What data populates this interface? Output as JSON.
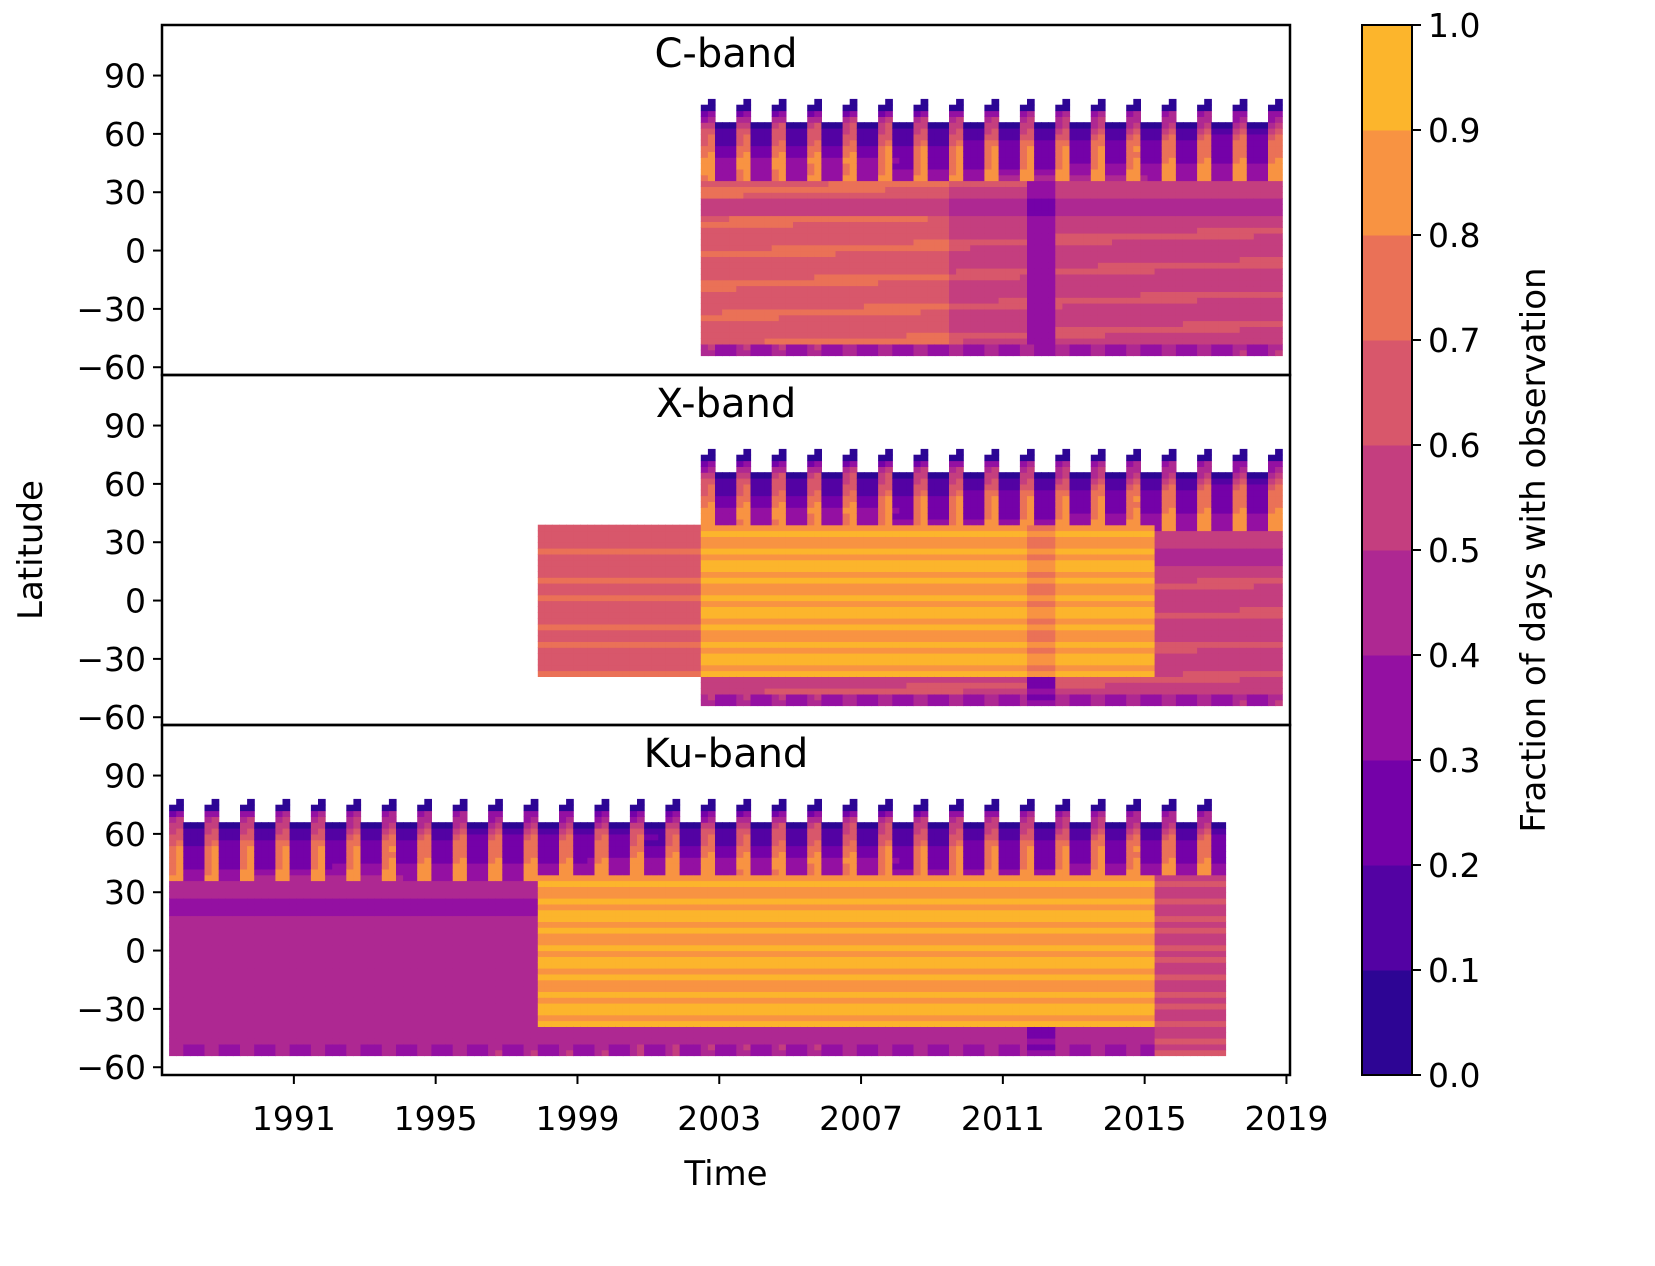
{
  "chart_data": {
    "type": "heatmap",
    "xlabel": "Time",
    "ylabel": "Latitude",
    "xlim": [
      1987.28,
      2019.1
    ],
    "ylim": [
      -64,
      116
    ],
    "xticks": [
      1991,
      1995,
      1999,
      2003,
      2007,
      2011,
      2015,
      2019
    ],
    "yticks": [
      90,
      60,
      30,
      0,
      -30,
      -60
    ],
    "ytick_labels": [
      "90",
      "60",
      "30",
      "0",
      "−30",
      "−60"
    ],
    "colorbar": {
      "label": "Fraction of days with observation",
      "ticks": [
        "0.0",
        "0.1",
        "0.2",
        "0.3",
        "0.4",
        "0.5",
        "0.6",
        "0.7",
        "0.8",
        "0.9",
        "1.0"
      ],
      "levels": [
        0,
        0.1,
        0.2,
        0.3,
        0.4,
        0.5,
        0.6,
        0.7,
        0.8,
        0.9,
        1.0
      ],
      "colors": [
        "#2d0594",
        "#5302a3",
        "#7401a8",
        "#9410a2",
        "#ae2892",
        "#c43e7f",
        "#d8576b",
        "#ea7157",
        "#f89342",
        "#fcb52c",
        "#f2e12a"
      ],
      "colormap": "plasma"
    },
    "panels": [
      {
        "title": "C-band",
        "segments": [
          {
            "start": 2002.5,
            "end": 2009.4,
            "lat_min": -55,
            "lat_max": 80,
            "value": 0.68,
            "seasonal": true
          },
          {
            "start": 2009.4,
            "end": 2011.7,
            "lat_min": -55,
            "lat_max": 80,
            "value": 0.58,
            "seasonal": true
          },
          {
            "start": 2011.7,
            "end": 2012.4,
            "lat_min": -55,
            "lat_max": 80,
            "value": 0.33,
            "seasonal": true
          },
          {
            "start": 2012.4,
            "end": 2018.9,
            "lat_min": -55,
            "lat_max": 80,
            "value": 0.58,
            "seasonal": true
          }
        ]
      },
      {
        "title": "X-band",
        "segments": [
          {
            "start": 1997.9,
            "end": 2002.5,
            "lat_min": -38,
            "lat_max": 38,
            "value": 0.66,
            "seasonal": false
          },
          {
            "start": 2002.5,
            "end": 2018.9,
            "lat_min": -55,
            "lat_max": 80,
            "value": 0.58,
            "seasonal": true
          },
          {
            "start": 2002.5,
            "end": 2015.2,
            "lat_min": -38,
            "lat_max": 38,
            "value": 0.9,
            "seasonal": false
          },
          {
            "start": 2011.7,
            "end": 2012.4,
            "lat_min": -38,
            "lat_max": 38,
            "value": 0.8,
            "seasonal": false
          },
          {
            "start": 2011.7,
            "end": 2012.4,
            "lat_min": -55,
            "lat_max": -38,
            "value": 0.3,
            "seasonal": false
          }
        ]
      },
      {
        "title": "Ku-band",
        "segments": [
          {
            "start": 1987.5,
            "end": 2017.3,
            "lat_min": -55,
            "lat_max": 80,
            "value": 0.47,
            "seasonal": true
          },
          {
            "start": 1997.9,
            "end": 2015.2,
            "lat_min": -38,
            "lat_max": 38,
            "value": 0.9,
            "seasonal": false
          },
          {
            "start": 2015.2,
            "end": 2017.3,
            "lat_min": -55,
            "lat_max": 38,
            "value": 0.58,
            "seasonal": false
          },
          {
            "start": 2011.7,
            "end": 2012.4,
            "lat_min": -55,
            "lat_max": -38,
            "value": 0.3,
            "seasonal": false
          }
        ]
      }
    ]
  }
}
